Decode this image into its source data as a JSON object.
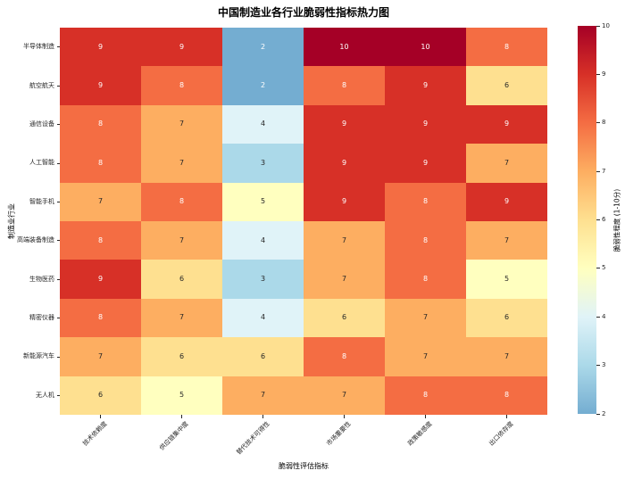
{
  "chart_data": {
    "type": "heatmap",
    "title": "中国制造业各行业脆弱性指标热力图",
    "xlabel": "脆弱性评估指标",
    "ylabel": "制造业行业",
    "colorbar_label": "脆弱性程度 (1-10分)",
    "columns": [
      "技术依赖度",
      "供应链集中度",
      "替代技术可得性",
      "市场重要性",
      "政策敏感度",
      "出口依存度"
    ],
    "rows": [
      "半导体制造",
      "航空航天",
      "通信设备",
      "人工智能",
      "智能手机",
      "高端装备制造",
      "生物医药",
      "精密仪器",
      "新能源汽车",
      "无人机"
    ],
    "values": [
      [
        9,
        9,
        2,
        10,
        10,
        8
      ],
      [
        9,
        8,
        2,
        8,
        9,
        6
      ],
      [
        8,
        7,
        4,
        9,
        9,
        9
      ],
      [
        8,
        7,
        3,
        9,
        9,
        7
      ],
      [
        7,
        8,
        5,
        9,
        8,
        9
      ],
      [
        8,
        7,
        4,
        7,
        8,
        7
      ],
      [
        9,
        6,
        3,
        7,
        8,
        5
      ],
      [
        8,
        7,
        4,
        6,
        7,
        6
      ],
      [
        7,
        6,
        6,
        8,
        7,
        7
      ],
      [
        6,
        5,
        7,
        7,
        8,
        8
      ]
    ],
    "value_range": [
      2,
      10
    ],
    "colormap": "RdYlBu_r",
    "value_colors": {
      "2": "#74add1",
      "3": "#abd9e9",
      "4": "#e0f3f8",
      "5": "#ffffbf",
      "6": "#fee090",
      "7": "#fdae61",
      "8": "#f46d43",
      "9": "#d73027",
      "10": "#a50026"
    },
    "white_text_values": [
      2,
      8,
      9,
      10
    ],
    "colorbar_ticks": [
      10,
      9,
      8,
      7,
      6,
      5,
      4,
      3,
      2
    ],
    "legend_position": "right-colorbar",
    "grid": false
  }
}
